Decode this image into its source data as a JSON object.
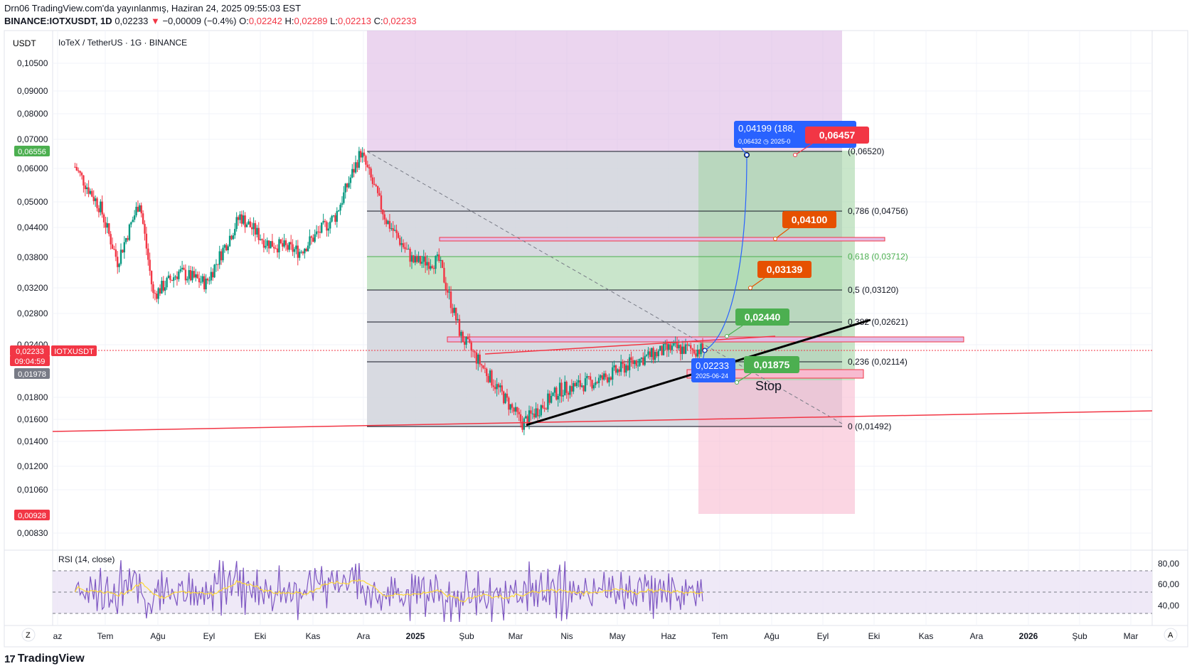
{
  "header": {
    "line1": "Drn06 TradingView.com'da yayınlanmış, Haziran 24, 2025 09:55:03 EST",
    "symbol": "BINANCE:IOTXUSDT, 1D",
    "last": "0,02233",
    "change_arrow": "▼",
    "change": "−0,00009 (−0.4%)",
    "o_label": "O:",
    "o": "0,02242",
    "h_label": "H:",
    "h": "0,02289",
    "l_label": "L:",
    "l": "0,02213",
    "c_label": "C:",
    "c": "0,02233"
  },
  "pane": {
    "currency": "USDT",
    "legend": "IoTeX / TetherUS · 1G · BINANCE",
    "rsi_legend": "RSI (14, close)"
  },
  "price_axis": {
    "ticks": [
      "0,10500",
      "0,09000",
      "0,08000",
      "0,07000",
      "0,06000",
      "0,05000",
      "0,04400",
      "0,03800",
      "0,03200",
      "0,02800",
      "0,02400",
      "0,01800",
      "0,01600",
      "0,01400",
      "0,01200",
      "0,01060",
      "0,00830"
    ],
    "badges": [
      {
        "text": "0,06556",
        "color": "#4caf50"
      },
      {
        "text": "0,02233",
        "color": "#f23645"
      },
      {
        "text": "09:04:59",
        "color": "#f23645"
      },
      {
        "text": "0,01978",
        "color": "#787b86"
      },
      {
        "text": "0,00928",
        "color": "#f23645"
      }
    ],
    "symbol_tag": "IOTXUSDT"
  },
  "rsi_axis": {
    "ticks": [
      "80,00",
      "60,00",
      "40,00"
    ]
  },
  "time_axis": {
    "labels": [
      "az",
      "Tem",
      "Ağu",
      "Eyl",
      "Eki",
      "Kas",
      "Ara",
      "2025",
      "Şub",
      "Mar",
      "Nis",
      "May",
      "Haz",
      "Tem",
      "Ağu",
      "Eyl",
      "Eki",
      "Kas",
      "Ara",
      "2026",
      "Şub",
      "Mar"
    ],
    "bold": [
      "2025",
      "2026"
    ]
  },
  "fib_levels": [
    {
      "label": "(0,06520)"
    },
    {
      "label": "0,786 (0,04756)"
    },
    {
      "label": "0,618 (0,03712)"
    },
    {
      "label": "0,5 (0,03120)"
    },
    {
      "label": "0,382 (0,02621)"
    },
    {
      "label": "0,236 (0,02114)"
    },
    {
      "label": "0 (0,01492)"
    }
  ],
  "callouts": [
    {
      "text": "0,04199 (188,",
      "color": "#2962ff",
      "sub": "0,06432 ◷ 2025-0"
    },
    {
      "text": "0,06457",
      "color": "#f23645"
    },
    {
      "text": "0,04100",
      "color": "#e65100"
    },
    {
      "text": "0,03139",
      "color": "#e65100"
    },
    {
      "text": "0,02440",
      "color": "#4caf50"
    },
    {
      "text": "0,01875",
      "color": "#4caf50"
    },
    {
      "text": "0,02233",
      "color": "#2962ff",
      "sub": "2025-06-24"
    }
  ],
  "stop_label": "Stop",
  "chart_data": {
    "type": "candlestick",
    "title": "IoTeX / TetherUS · 1G · BINANCE",
    "symbol": "IOTXUSDT",
    "xlabel": "",
    "ylabel": "",
    "ylim": [
      0.0083,
      0.105
    ],
    "x_range": [
      "2024-06",
      "2026-03"
    ],
    "close_points": [
      {
        "x": "2024-06-20",
        "y": 0.06
      },
      {
        "x": "2024-07-05",
        "y": 0.048
      },
      {
        "x": "2024-07-15",
        "y": 0.036
      },
      {
        "x": "2024-07-28",
        "y": 0.05
      },
      {
        "x": "2024-08-05",
        "y": 0.03
      },
      {
        "x": "2024-08-20",
        "y": 0.034
      },
      {
        "x": "2024-09-05",
        "y": 0.032
      },
      {
        "x": "2024-09-25",
        "y": 0.046
      },
      {
        "x": "2024-10-10",
        "y": 0.04
      },
      {
        "x": "2024-10-30",
        "y": 0.038
      },
      {
        "x": "2024-11-20",
        "y": 0.046
      },
      {
        "x": "2024-12-05",
        "y": 0.065
      },
      {
        "x": "2024-12-20",
        "y": 0.045
      },
      {
        "x": "2025-01-05",
        "y": 0.036
      },
      {
        "x": "2025-01-20",
        "y": 0.036
      },
      {
        "x": "2025-02-02",
        "y": 0.024
      },
      {
        "x": "2025-02-20",
        "y": 0.019
      },
      {
        "x": "2025-03-10",
        "y": 0.015
      },
      {
        "x": "2025-04-01",
        "y": 0.018
      },
      {
        "x": "2025-04-25",
        "y": 0.019
      },
      {
        "x": "2025-05-15",
        "y": 0.021
      },
      {
        "x": "2025-06-05",
        "y": 0.0225
      },
      {
        "x": "2025-06-24",
        "y": 0.02233
      }
    ],
    "last_price": 0.02233,
    "rsi": {
      "period": 14,
      "source": "close",
      "ylim": [
        20,
        85
      ],
      "bands": [
        70,
        50,
        30
      ]
    },
    "trade_box": {
      "entry": 0.02233,
      "target": 0.06457,
      "stop": 0.00928
    },
    "fib": [
      {
        "ratio": 1,
        "price": 0.0652
      },
      {
        "ratio": 0.786,
        "price": 0.04756
      },
      {
        "ratio": 0.618,
        "price": 0.03712
      },
      {
        "ratio": 0.5,
        "price": 0.0312
      },
      {
        "ratio": 0.382,
        "price": 0.02621
      },
      {
        "ratio": 0.236,
        "price": 0.02114
      },
      {
        "ratio": 0,
        "price": 0.01492
      }
    ]
  }
}
